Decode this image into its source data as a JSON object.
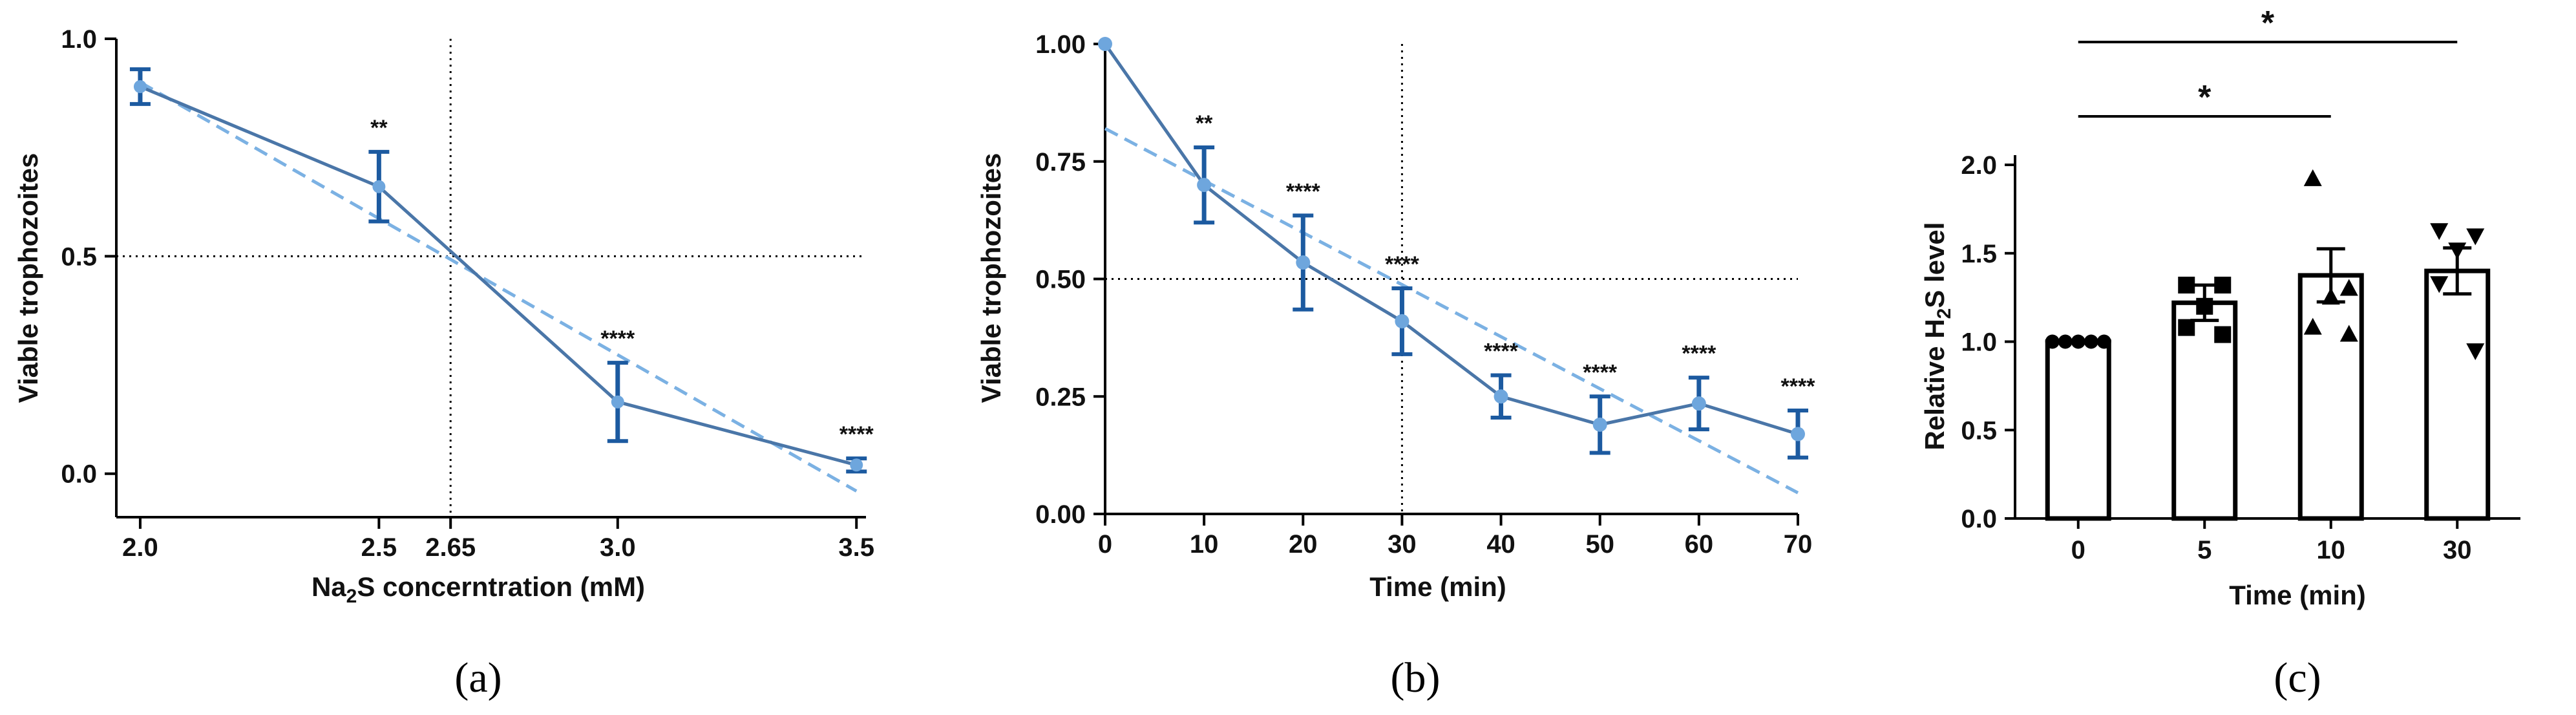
{
  "colors": {
    "series": "#4a76a8",
    "fit": "#7bb1e3",
    "errorbar": "#1c5aa0",
    "marker": "#6ea6dd",
    "ref": "#000000"
  },
  "chart_data": [
    {
      "panel": "(a)",
      "type": "line",
      "title": "",
      "xlabel": "Na2S concerntration (mM)",
      "xlabel_parts": {
        "pre": "Na",
        "sub": "2",
        "post": "S concerntration (mM)"
      },
      "ylabel": "Viable trophozoites",
      "x": [
        2.0,
        2.5,
        3.0,
        3.5
      ],
      "y": [
        0.89,
        0.66,
        0.165,
        0.02
      ],
      "yerr": [
        0.04,
        0.08,
        0.09,
        0.015
      ],
      "significance": [
        "",
        "**",
        "****",
        "****"
      ],
      "fit_line": {
        "x": [
          2.0,
          3.5
        ],
        "y": [
          0.9,
          -0.04
        ]
      },
      "ref_x": 2.65,
      "ref_y": 0.5,
      "extra_x_tick": "2.65",
      "xlim": [
        1.95,
        3.52
      ],
      "ylim": [
        -0.1,
        1.0
      ],
      "xticks": [
        "2.0",
        "2.5",
        "3.0",
        "3.5"
      ],
      "yticks": [
        "0.0",
        "0.5",
        "1.0"
      ]
    },
    {
      "panel": "(b)",
      "type": "line",
      "title": "",
      "xlabel": "Time (min)",
      "ylabel": "Viable trophozoites",
      "x": [
        0,
        10,
        20,
        30,
        40,
        50,
        60,
        70
      ],
      "y": [
        1.0,
        0.7,
        0.535,
        0.41,
        0.25,
        0.19,
        0.235,
        0.17
      ],
      "yerr": [
        0.0,
        0.08,
        0.1,
        0.07,
        0.045,
        0.06,
        0.055,
        0.05
      ],
      "significance": [
        "",
        "**",
        "****",
        "****",
        "****",
        "****",
        "****",
        "****"
      ],
      "fit_line": {
        "x": [
          0,
          70
        ],
        "y": [
          0.82,
          0.045
        ]
      },
      "ref_x": 30,
      "ref_y": 0.5,
      "xlim": [
        0,
        70
      ],
      "ylim": [
        0,
        1.0
      ],
      "xticks": [
        "0",
        "10",
        "20",
        "30",
        "40",
        "50",
        "60",
        "70"
      ],
      "yticks": [
        "0.00",
        "0.25",
        "0.50",
        "0.75",
        "1.00"
      ]
    },
    {
      "panel": "(c)",
      "type": "bar",
      "title": "",
      "xlabel": "Time (min)",
      "ylabel": "Relative H2S level",
      "ylabel_parts": {
        "pre": "Relative H",
        "sub": "2",
        "post": "S level"
      },
      "categories": [
        "0",
        "5",
        "10",
        "30"
      ],
      "values": [
        1.0,
        1.22,
        1.375,
        1.4
      ],
      "sem": [
        0.0,
        0.1,
        0.15,
        0.13
      ],
      "points": [
        [
          1.0,
          1.0,
          1.0,
          1.0,
          1.0
        ],
        [
          1.32,
          1.32,
          1.2,
          1.08,
          1.04
        ],
        [
          1.92,
          1.3,
          1.25,
          1.08,
          1.04
        ],
        [
          1.63,
          1.6,
          1.52,
          1.33,
          0.95
        ]
      ],
      "markers": [
        "circle",
        "square",
        "triangle-up",
        "triangle-down"
      ],
      "ylim": [
        0,
        2.0
      ],
      "yticks": [
        "0.0",
        "0.5",
        "1.0",
        "1.5",
        "2.0"
      ],
      "brackets": [
        {
          "from": "0",
          "to": "10",
          "label": "*"
        },
        {
          "from": "0",
          "to": "30",
          "label": "*"
        }
      ]
    }
  ]
}
